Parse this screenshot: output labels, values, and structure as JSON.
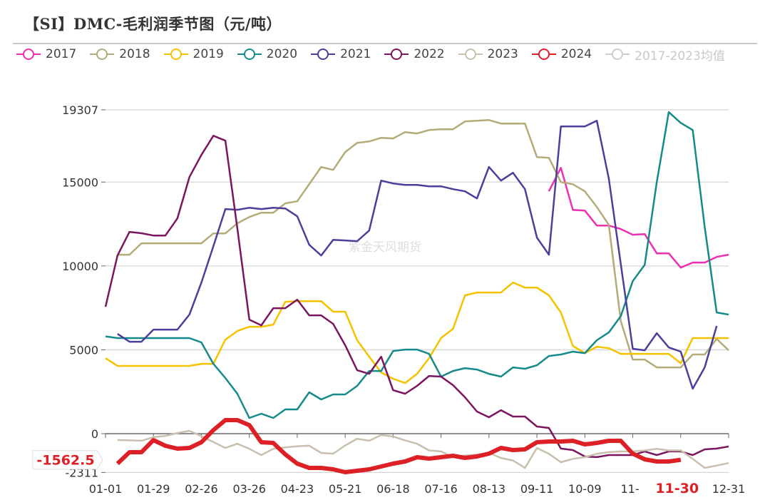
{
  "title": "【SI】DMC-毛利润季节图（元/吨）",
  "watermark": "紫金天风期货",
  "chart_data": {
    "type": "line",
    "title": "【SI】DMC-毛利润季节图（元/吨）",
    "x_interval": "weekly",
    "x_tick_labels": [
      "01-01",
      "01-29",
      "02-26",
      "03-26",
      "04-23",
      "05-21",
      "06-18",
      "07-16",
      "08-13",
      "09-11",
      "10-09",
      "11-",
      "11-30",
      "12-31"
    ],
    "highlighted_x_label": "11-30",
    "y_tick_labels": [
      "19307",
      "15000",
      "10000",
      "5000",
      "0",
      "-2311"
    ],
    "ylim": [
      -2311,
      19307
    ],
    "grid": true,
    "legend_position": "top",
    "latest_value_label": "-1562.5",
    "series": [
      {
        "name": "2017",
        "color": "#ee2fb0",
        "visible": true,
        "values": [
          null,
          null,
          null,
          null,
          null,
          null,
          null,
          null,
          null,
          null,
          null,
          null,
          null,
          null,
          null,
          null,
          null,
          null,
          null,
          null,
          null,
          null,
          null,
          null,
          null,
          null,
          null,
          null,
          null,
          null,
          null,
          null,
          null,
          null,
          null,
          null,
          null,
          14450,
          15850,
          13345,
          13300,
          12410,
          12410,
          12200,
          11860,
          11900,
          10750,
          10750,
          9900,
          10200,
          10200,
          10540,
          10670
        ]
      },
      {
        "name": "2018",
        "color": "#b5ab78",
        "visible": true,
        "values": [
          null,
          10670,
          10670,
          11350,
          11350,
          11350,
          11350,
          11350,
          11350,
          11940,
          11940,
          12540,
          12920,
          13175,
          13175,
          13730,
          13855,
          14875,
          15900,
          15725,
          16790,
          17340,
          17425,
          17640,
          17600,
          17980,
          17900,
          18105,
          18150,
          18150,
          18615,
          18660,
          18700,
          18490,
          18490,
          18490,
          16490,
          16450,
          15000,
          14870,
          14450,
          13515,
          12450,
          6715,
          4420,
          4420,
          3950,
          3950,
          3950,
          4720,
          4720,
          5650,
          4970
        ]
      },
      {
        "name": "2019",
        "color": "#f5c200",
        "visible": true,
        "values": [
          4500,
          4040,
          4040,
          4040,
          4040,
          4040,
          4040,
          4040,
          4165,
          4165,
          5610,
          6120,
          6375,
          6375,
          6500,
          7860,
          7900,
          7900,
          7900,
          7270,
          7270,
          5570,
          4590,
          3655,
          3270,
          3020,
          3570,
          4500,
          5700,
          6250,
          8245,
          8415,
          8415,
          8415,
          9010,
          8710,
          8710,
          8245,
          7225,
          5230,
          4800,
          5185,
          5100,
          4760,
          4760,
          4760,
          4760,
          4760,
          4200,
          5700,
          5700,
          5700,
          5700
        ]
      },
      {
        "name": "2020",
        "color": "#168a8a",
        "visible": true,
        "values": [
          5800,
          5700,
          5700,
          5700,
          5700,
          5700,
          5700,
          5700,
          5440,
          4165,
          3315,
          2380,
          935,
          1190,
          935,
          1445,
          1445,
          2465,
          2040,
          2340,
          2340,
          2850,
          3740,
          3740,
          4930,
          5015,
          5015,
          4760,
          3400,
          3740,
          3910,
          3825,
          3570,
          3400,
          3950,
          3870,
          4080,
          4630,
          4720,
          4890,
          4800,
          5570,
          6035,
          7010,
          9095,
          10070,
          15000,
          19170,
          18530,
          18105,
          12325,
          7225,
          7100
        ]
      },
      {
        "name": "2021",
        "color": "#4b3f9b",
        "visible": true,
        "values": [
          null,
          5950,
          5480,
          5480,
          6205,
          6205,
          6205,
          7100,
          9010,
          11180,
          13390,
          13350,
          13470,
          13390,
          13470,
          13430,
          12960,
          11260,
          10625,
          11560,
          11520,
          11480,
          12110,
          15090,
          14920,
          14830,
          14830,
          14750,
          14750,
          14580,
          14450,
          14025,
          15900,
          15090,
          15555,
          14580,
          11690,
          10670,
          18320,
          18320,
          18320,
          18660,
          15215,
          10115,
          5060,
          4970,
          5990,
          5140,
          4890,
          2680,
          3950,
          6420,
          null
        ]
      },
      {
        "name": "2022",
        "color": "#7b1560",
        "visible": true,
        "values": [
          7565,
          10625,
          12030,
          11950,
          11815,
          11815,
          12835,
          15300,
          16620,
          17765,
          17470,
          12240,
          6800,
          6460,
          7480,
          7480,
          7990,
          7055,
          7055,
          6545,
          5270,
          3780,
          3570,
          4590,
          2590,
          2380,
          2850,
          3440,
          3400,
          2890,
          2170,
          1320,
          980,
          1400,
          1020,
          1020,
          425,
          340,
          -890,
          -980,
          -1360,
          -1400,
          -1275,
          -1275,
          -1275,
          -1060,
          -1275,
          -1060,
          -1060,
          -1275,
          -935,
          -890,
          -765
        ]
      },
      {
        "name": "2023",
        "color": "#c9bfae",
        "visible": true,
        "values": [
          null,
          -380,
          -400,
          -420,
          -210,
          -130,
          40,
          170,
          -150,
          -500,
          -850,
          -600,
          -900,
          -1275,
          -900,
          -820,
          -750,
          -720,
          -1150,
          -1190,
          -700,
          -300,
          -420,
          -80,
          -170,
          -400,
          -600,
          -1000,
          -1060,
          -1400,
          -1300,
          -1250,
          -1150,
          -1450,
          -1600,
          -2040,
          -850,
          -1200,
          -1700,
          -1500,
          -1400,
          -1200,
          -1100,
          -1060,
          -1060,
          -1000,
          -900,
          -1000,
          -1000,
          -1500,
          -2040,
          -1900,
          -1750
        ]
      },
      {
        "name": "2024",
        "color": "#dc2026",
        "visible": true,
        "values": [
          null,
          -1785,
          -1105,
          -1105,
          -383,
          -723,
          -893,
          -850,
          -510,
          213,
          808,
          808,
          510,
          -510,
          -553,
          -1233,
          -1785,
          -2040,
          -2040,
          -2125,
          -2295,
          -2210,
          -2125,
          -1955,
          -1785,
          -1658,
          -1403,
          -1488,
          -1403,
          -1318,
          -1445,
          -1360,
          -1190,
          -850,
          -978,
          -935,
          -510,
          -468,
          -468,
          -425,
          -638,
          -553,
          -425,
          -425,
          -1190,
          -1530,
          -1658,
          -1658,
          -1562.5,
          null,
          null,
          null,
          null
        ]
      },
      {
        "name": "2017-2023均值",
        "color": "#cccccc",
        "visible": false,
        "values": []
      }
    ]
  }
}
